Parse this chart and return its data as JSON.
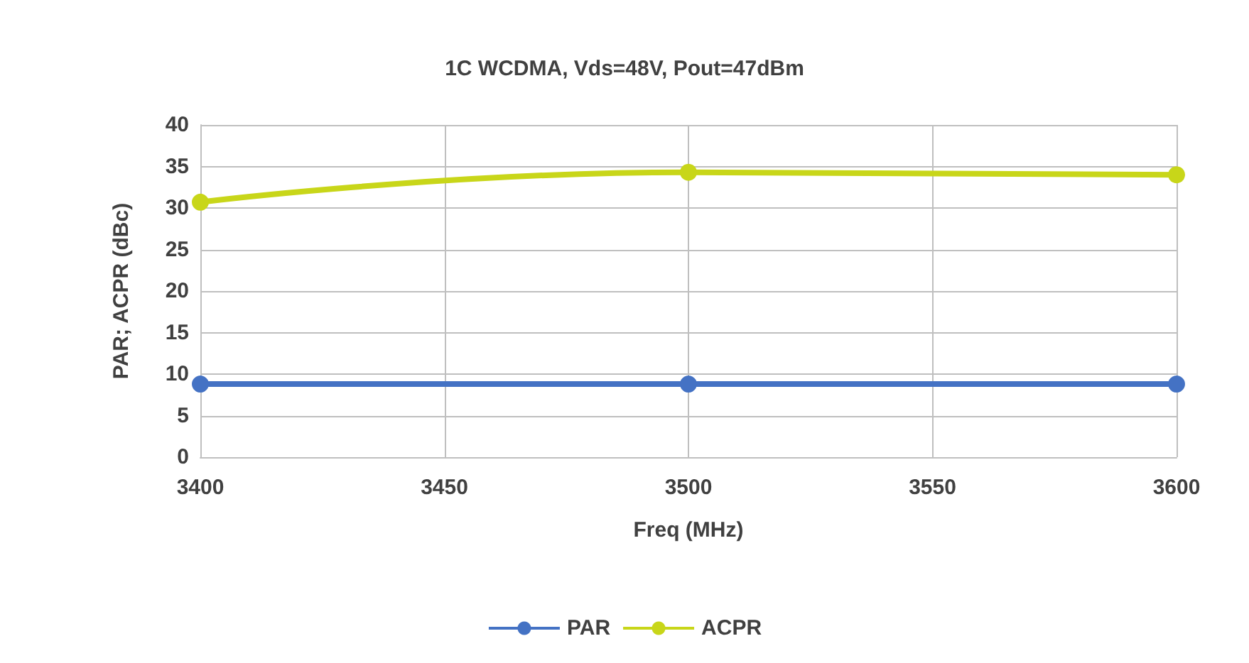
{
  "chart_data": {
    "type": "line",
    "title": "1C WCDMA, Vds=48V, Pout=47dBm",
    "xlabel": "Freq (MHz)",
    "ylabel": "PAR; ACPR (dBc)",
    "x": [
      3400,
      3500,
      3600
    ],
    "series": [
      {
        "name": "PAR",
        "color": "#4472c4",
        "values": [
          8.8,
          8.8,
          8.8
        ]
      },
      {
        "name": "ACPR",
        "color": "#c8d619",
        "values": [
          30.7,
          34.3,
          34.0
        ]
      }
    ],
    "xlim": [
      3400,
      3600
    ],
    "xticks": [
      3400,
      3450,
      3500,
      3550,
      3600
    ],
    "ylim": [
      0,
      40
    ],
    "yticks": [
      0,
      5,
      10,
      15,
      20,
      25,
      30,
      35,
      40
    ],
    "grid": true,
    "legend": "bottom",
    "marker": "circle",
    "line_style": "solid"
  }
}
